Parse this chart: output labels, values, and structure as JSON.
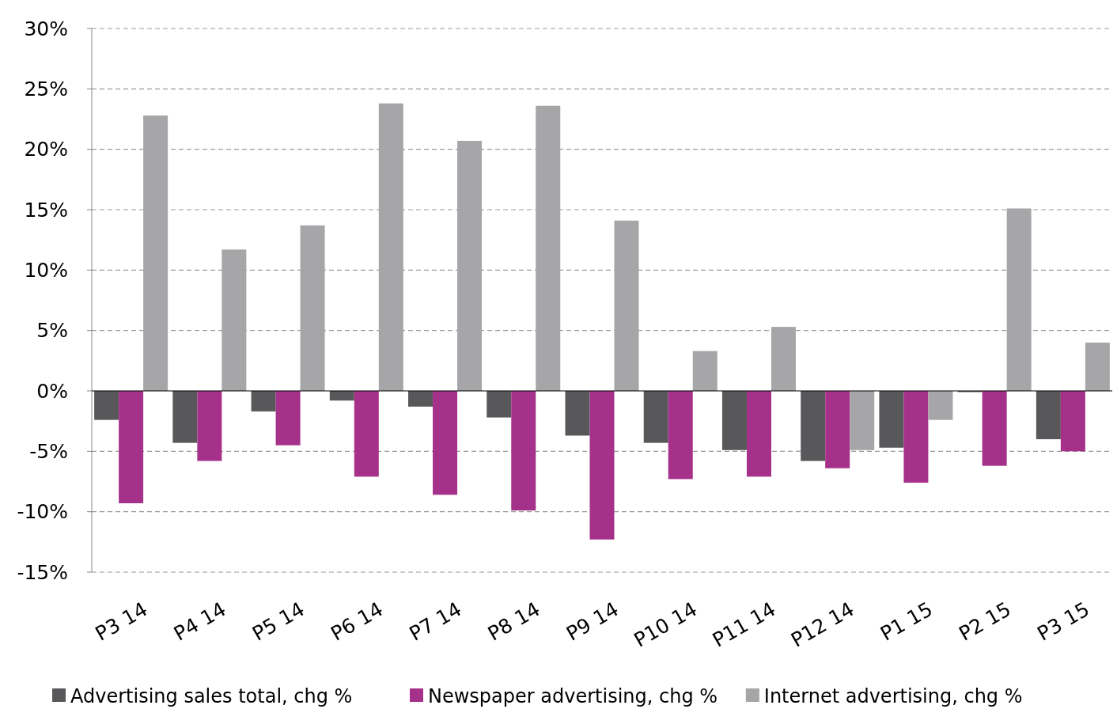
{
  "chart_data": {
    "type": "bar",
    "categories": [
      "P3 14",
      "P4 14",
      "P5 14",
      "P6 14",
      "P7 14",
      "P8 14",
      "P9 14",
      "P10 14",
      "P11 14",
      "P12 14",
      "P1 15",
      "P2 15",
      "P3 15"
    ],
    "series": [
      {
        "name": "Advertising sales total, chg %",
        "color": "#58585a",
        "values": [
          -2.4,
          -4.3,
          -1.7,
          -0.8,
          -1.3,
          -2.2,
          -3.7,
          -4.3,
          -4.9,
          -5.8,
          -4.7,
          -0.1,
          -4.0
        ]
      },
      {
        "name": "Newspaper advertising, chg %",
        "color": "#a5318a",
        "values": [
          -9.3,
          -5.8,
          -4.5,
          -7.1,
          -8.6,
          -9.9,
          -12.3,
          -7.3,
          -7.1,
          -6.4,
          -7.6,
          -6.2,
          -5.0
        ]
      },
      {
        "name": "Internet advertising, chg %",
        "color": "#a6a6a8",
        "values": [
          22.8,
          11.7,
          13.7,
          23.8,
          20.7,
          23.6,
          14.1,
          3.3,
          5.3,
          -4.9,
          -2.4,
          15.1,
          4.0
        ]
      }
    ],
    "ylim": [
      -15,
      30
    ],
    "yticks": [
      {
        "value": -15,
        "label": "-15%"
      },
      {
        "value": -10,
        "label": "-10%"
      },
      {
        "value": -5,
        "label": "-5%"
      },
      {
        "value": 0,
        "label": "0%"
      },
      {
        "value": 5,
        "label": "5%"
      },
      {
        "value": 10,
        "label": "10%"
      },
      {
        "value": 15,
        "label": "15%"
      },
      {
        "value": 20,
        "label": "20%"
      },
      {
        "value": 25,
        "label": "25%"
      },
      {
        "value": 30,
        "label": "30%"
      }
    ],
    "grid": "y",
    "legend": "bottom"
  }
}
